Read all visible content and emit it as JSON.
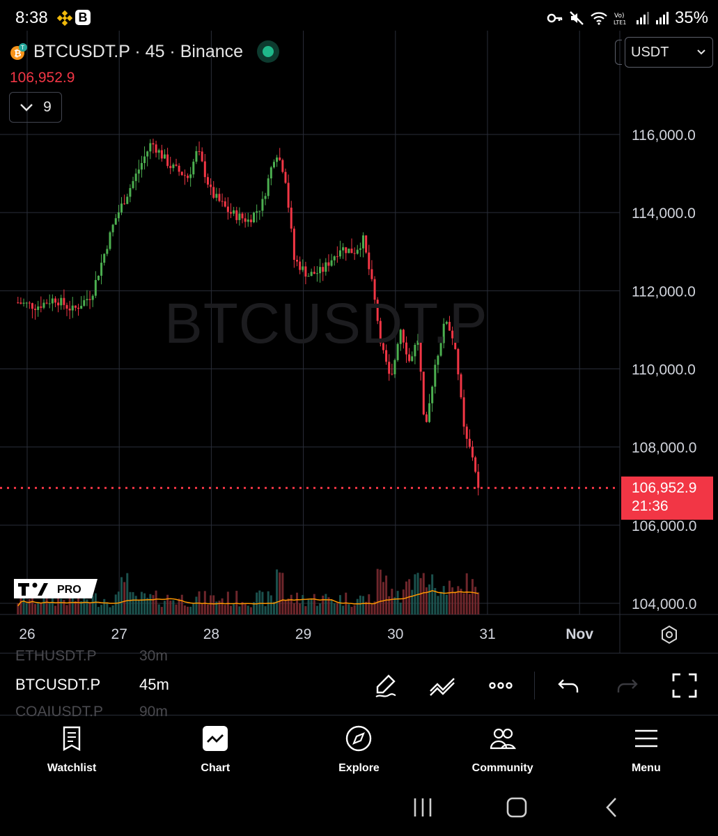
{
  "status_bar": {
    "time": "8:38",
    "battery": "35%",
    "icons": [
      "binance-icon",
      "b-app-icon",
      "key-icon",
      "mute-icon",
      "wifi-icon",
      "volte-icon",
      "signal-icon",
      "battery-icon"
    ]
  },
  "chart": {
    "symbol_title": "BTCUSDT.P · 45 · Binance",
    "last_price": "106,952.9",
    "indicator_count": "9",
    "currency": "USDT",
    "watermark": "BTCUSDT.P",
    "price_tag": {
      "price": "106,952.9",
      "countdown": "21:36"
    },
    "logo_badge": "PRO",
    "colors": {
      "up": "#26a69a",
      "up_bright": "#4caf50",
      "down": "#f23645",
      "ma": "#ff9800",
      "grid": "#2a2e39"
    }
  },
  "chart_data": {
    "type": "candlestick",
    "y_ticks": [
      "116,000.0",
      "114,000.0",
      "112,000.0",
      "110,000.0",
      "108,000.0",
      "106,000.0",
      "104,000.0"
    ],
    "x_ticks": [
      "26",
      "27",
      "28",
      "29",
      "30",
      "31",
      "Nov"
    ],
    "ylim": [
      103800,
      116800
    ],
    "last": 106952.9,
    "close_path": [
      [
        25.9,
        111700
      ],
      [
        26.1,
        111600
      ],
      [
        26.3,
        111800
      ],
      [
        26.5,
        111500
      ],
      [
        26.7,
        111900
      ],
      [
        26.95,
        113800
      ],
      [
        27.15,
        114800
      ],
      [
        27.35,
        115800
      ],
      [
        27.55,
        115200
      ],
      [
        27.75,
        114900
      ],
      [
        27.85,
        115600
      ],
      [
        28.0,
        114500
      ],
      [
        28.2,
        114000
      ],
      [
        28.4,
        113800
      ],
      [
        28.55,
        114200
      ],
      [
        28.7,
        115600
      ],
      [
        28.8,
        115000
      ],
      [
        28.9,
        112800
      ],
      [
        29.05,
        112400
      ],
      [
        29.2,
        112500
      ],
      [
        29.4,
        113100
      ],
      [
        29.55,
        113000
      ],
      [
        29.65,
        113300
      ],
      [
        29.75,
        112100
      ],
      [
        29.85,
        110600
      ],
      [
        29.95,
        109600
      ],
      [
        30.05,
        111100
      ],
      [
        30.15,
        110200
      ],
      [
        30.25,
        110800
      ],
      [
        30.32,
        108200
      ],
      [
        30.42,
        110000
      ],
      [
        30.55,
        111300
      ],
      [
        30.65,
        110600
      ],
      [
        30.75,
        108300
      ],
      [
        30.85,
        107700
      ],
      [
        30.9,
        106952.9
      ]
    ],
    "volume_ma": "orange line over volume bars"
  },
  "toolbar": {
    "symbol_prev": "ETHUSDT.P",
    "tf_prev": "30m",
    "symbol": "BTCUSDT.P",
    "timeframe": "45m",
    "symbol_next": "COAIUSDT.P",
    "tf_next": "90m"
  },
  "nav": {
    "items": [
      {
        "label": "Watchlist",
        "icon": "watchlist-icon"
      },
      {
        "label": "Chart",
        "icon": "chart-icon"
      },
      {
        "label": "Explore",
        "icon": "compass-icon"
      },
      {
        "label": "Community",
        "icon": "community-icon"
      },
      {
        "label": "Menu",
        "icon": "menu-icon"
      }
    ]
  }
}
